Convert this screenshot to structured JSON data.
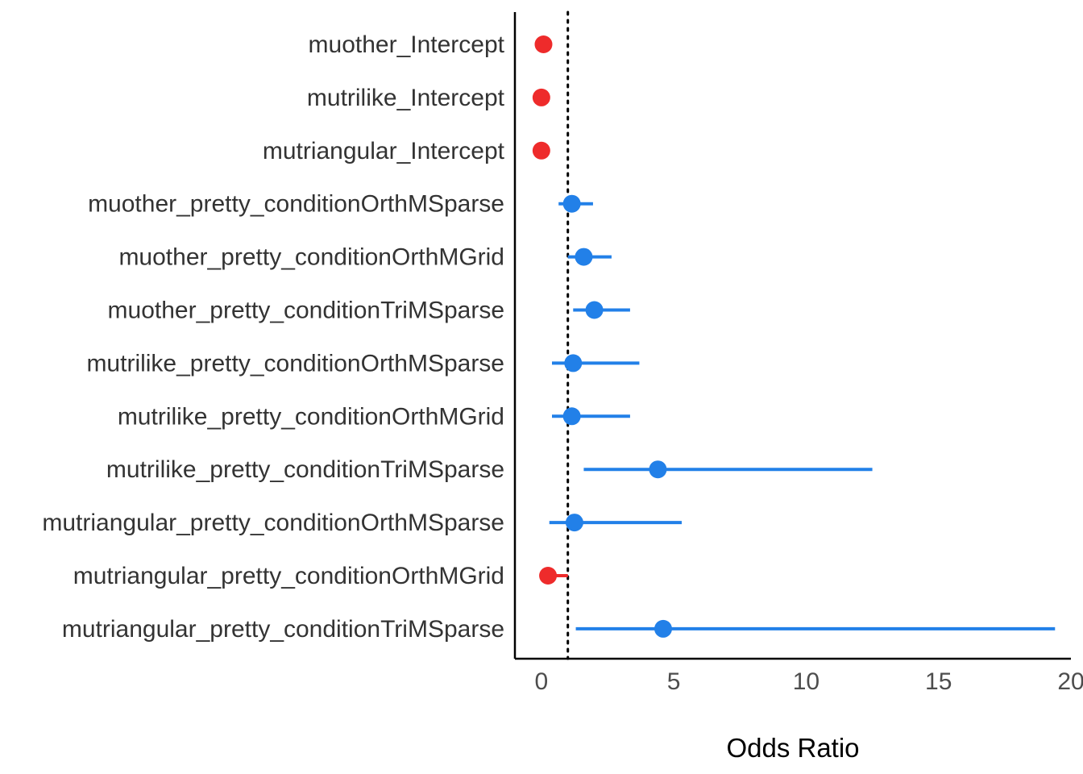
{
  "chart_data": {
    "type": "forest",
    "xlabel": "Odds Ratio",
    "ylabel": "",
    "xlim": [
      -1,
      20
    ],
    "xticks": [
      0,
      5,
      10,
      15,
      20
    ],
    "reference_line": 1,
    "grid": false,
    "colors": {
      "positive": "#2280e8",
      "negative": "#ee2b2b",
      "axis": "#000000",
      "reference": "#000000"
    },
    "rows": [
      {
        "label": "muother_Intercept",
        "estimate": 0.08,
        "lower": null,
        "upper": null,
        "color": "negative"
      },
      {
        "label": "mutrilike_Intercept",
        "estimate": 0.0,
        "lower": null,
        "upper": null,
        "color": "negative"
      },
      {
        "label": "mutriangular_Intercept",
        "estimate": 0.0,
        "lower": null,
        "upper": null,
        "color": "negative"
      },
      {
        "label": "muother_pretty_conditionOrthMSparse",
        "estimate": 1.15,
        "lower": 0.65,
        "upper": 1.95,
        "color": "positive"
      },
      {
        "label": "muother_pretty_conditionOrthMGrid",
        "estimate": 1.6,
        "lower": 1.0,
        "upper": 2.65,
        "color": "positive"
      },
      {
        "label": "muother_pretty_conditionTriMSparse",
        "estimate": 2.0,
        "lower": 1.2,
        "upper": 3.35,
        "color": "positive"
      },
      {
        "label": "mutrilike_pretty_conditionOrthMSparse",
        "estimate": 1.2,
        "lower": 0.4,
        "upper": 3.7,
        "color": "positive"
      },
      {
        "label": "mutrilike_pretty_conditionOrthMGrid",
        "estimate": 1.15,
        "lower": 0.4,
        "upper": 3.35,
        "color": "positive"
      },
      {
        "label": "mutrilike_pretty_conditionTriMSparse",
        "estimate": 4.4,
        "lower": 1.6,
        "upper": 12.5,
        "color": "positive"
      },
      {
        "label": "mutriangular_pretty_conditionOrthMSparse",
        "estimate": 1.25,
        "lower": 0.3,
        "upper": 5.3,
        "color": "positive"
      },
      {
        "label": "mutriangular_pretty_conditionOrthMGrid",
        "estimate": 0.25,
        "lower": 0.1,
        "upper": 1.0,
        "color": "negative"
      },
      {
        "label": "mutriangular_pretty_conditionTriMSparse",
        "estimate": 4.6,
        "lower": 1.3,
        "upper": 19.4,
        "color": "positive"
      }
    ]
  }
}
